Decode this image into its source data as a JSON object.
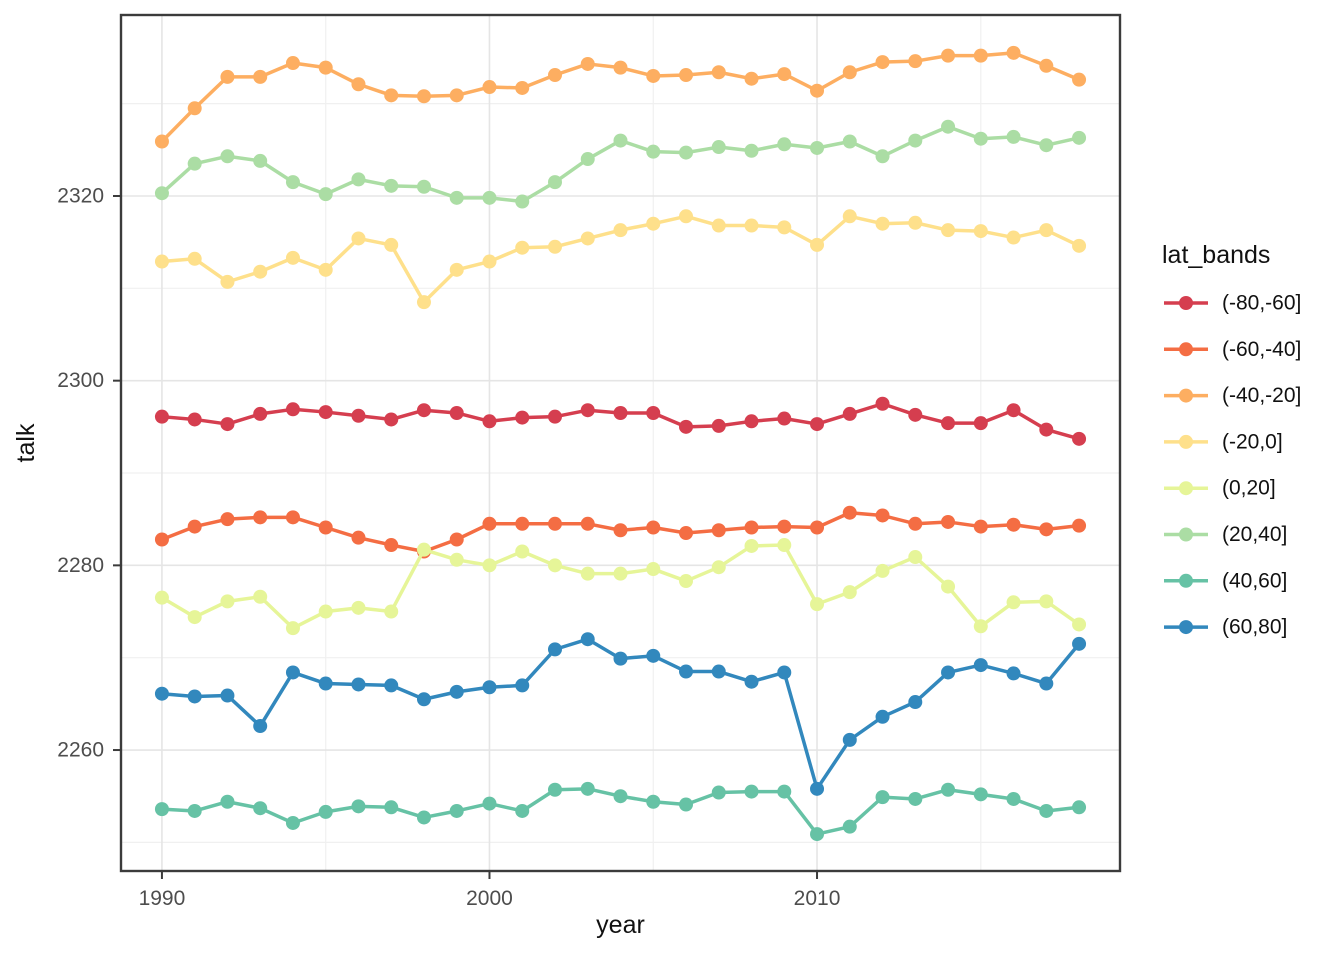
{
  "figure": {
    "background": "#ffffff"
  },
  "axes": {
    "x_label": "year",
    "y_label": "talk",
    "tick_color": "#4d4d4d",
    "title_color": "#111111",
    "panel_border_color": "#3b3b3b",
    "grid_major_color": "#e5e5e5",
    "grid_minor_color": "#f0f0f0"
  },
  "legend": {
    "title": "lat_bands",
    "position": "right"
  },
  "chart_data": {
    "type": "line",
    "title": "",
    "xlabel": "year",
    "ylabel": "talk",
    "x": [
      1990,
      1991,
      1992,
      1993,
      1994,
      1995,
      1996,
      1997,
      1998,
      1999,
      2000,
      2001,
      2002,
      2003,
      2004,
      2005,
      2006,
      2007,
      2008,
      2009,
      2010,
      2011,
      2012,
      2013,
      2014,
      2015,
      2016,
      2017,
      2018
    ],
    "series": [
      {
        "name": "(-80,-60]",
        "color": "#D53E4F",
        "values": [
          2296.1,
          2295.8,
          2295.3,
          2296.4,
          2296.9,
          2296.6,
          2296.2,
          2295.8,
          2296.8,
          2296.5,
          2295.6,
          2296.0,
          2296.1,
          2296.8,
          2296.5,
          2296.5,
          2295.0,
          2295.1,
          2295.6,
          2295.9,
          2295.3,
          2296.4,
          2297.5,
          2296.3,
          2295.4,
          2295.4,
          2296.8,
          2294.7,
          2293.7
        ]
      },
      {
        "name": "(-60,-40]",
        "color": "#F46D43",
        "values": [
          2282.8,
          2284.2,
          2285.0,
          2285.2,
          2285.2,
          2284.1,
          2283.0,
          2282.2,
          2281.5,
          2282.8,
          2284.5,
          2284.5,
          2284.5,
          2284.5,
          2283.8,
          2284.1,
          2283.5,
          2283.8,
          2284.1,
          2284.2,
          2284.1,
          2285.7,
          2285.4,
          2284.5,
          2284.7,
          2284.2,
          2284.4,
          2283.9,
          2284.3
        ]
      },
      {
        "name": "(-40,-20]",
        "color": "#FDAE61",
        "values": [
          2325.9,
          2329.5,
          2332.9,
          2332.9,
          2334.4,
          2333.9,
          2332.1,
          2330.9,
          2330.8,
          2330.9,
          2331.8,
          2331.7,
          2333.1,
          2334.3,
          2333.9,
          2333.0,
          2333.1,
          2333.4,
          2332.7,
          2333.2,
          2331.4,
          2333.4,
          2334.5,
          2334.6,
          2335.2,
          2335.2,
          2335.5,
          2334.1,
          2332.6
        ]
      },
      {
        "name": "(-20,0]",
        "color": "#FEE08B",
        "values": [
          2312.9,
          2313.2,
          2310.7,
          2311.8,
          2313.3,
          2312.0,
          2315.4,
          2314.7,
          2308.5,
          2312.0,
          2312.9,
          2314.4,
          2314.5,
          2315.4,
          2316.3,
          2317.0,
          2317.8,
          2316.8,
          2316.8,
          2316.6,
          2314.7,
          2317.8,
          2317.0,
          2317.1,
          2316.3,
          2316.2,
          2315.5,
          2316.3,
          2314.6
        ]
      },
      {
        "name": "(0,20]",
        "color": "#E6F598",
        "values": [
          2276.5,
          2274.4,
          2276.1,
          2276.6,
          2273.2,
          2275.0,
          2275.4,
          2275.0,
          2281.7,
          2280.6,
          2280.0,
          2281.5,
          2280.0,
          2279.1,
          2279.1,
          2279.6,
          2278.3,
          2279.8,
          2282.1,
          2282.2,
          2275.8,
          2277.1,
          2279.4,
          2280.9,
          2277.7,
          2273.4,
          2276.0,
          2276.1,
          2273.6
        ]
      },
      {
        "name": "(20,40]",
        "color": "#ABDDA4",
        "values": [
          2320.3,
          2323.5,
          2324.3,
          2323.8,
          2321.5,
          2320.2,
          2321.8,
          2321.1,
          2321.0,
          2319.8,
          2319.8,
          2319.4,
          2321.5,
          2324.0,
          2326.0,
          2324.8,
          2324.7,
          2325.3,
          2324.9,
          2325.6,
          2325.2,
          2325.9,
          2324.3,
          2326.0,
          2327.5,
          2326.2,
          2326.4,
          2325.5,
          2326.3
        ]
      },
      {
        "name": "(40,60]",
        "color": "#66C2A5",
        "values": [
          2253.6,
          2253.4,
          2254.4,
          2253.7,
          2252.1,
          2253.3,
          2253.9,
          2253.8,
          2252.7,
          2253.4,
          2254.2,
          2253.4,
          2255.7,
          2255.8,
          2255.0,
          2254.4,
          2254.1,
          2255.4,
          2255.5,
          2255.5,
          2250.9,
          2251.7,
          2254.9,
          2254.7,
          2255.7,
          2255.2,
          2254.7,
          2253.4,
          2253.8
        ]
      },
      {
        "name": "(60,80]",
        "color": "#3288BD",
        "values": [
          2266.1,
          2265.8,
          2265.9,
          2262.6,
          2268.4,
          2267.2,
          2267.1,
          2267.0,
          2265.5,
          2266.3,
          2266.8,
          2267.0,
          2270.9,
          2272.0,
          2269.9,
          2270.2,
          2268.5,
          2268.5,
          2267.4,
          2268.4,
          2255.8,
          2261.1,
          2263.6,
          2265.2,
          2268.4,
          2269.2,
          2268.3,
          2267.2,
          2271.5
        ]
      }
    ],
    "xlim": [
      1988.75,
      2019.25
    ],
    "ylim": [
      2246.9,
      2339.6
    ],
    "x_major_ticks": [
      1990,
      2000,
      2010
    ],
    "x_minor_ticks": [
      1995,
      2005,
      2015
    ],
    "y_major_ticks": [
      2260,
      2280,
      2300,
      2320
    ],
    "y_minor_ticks": [
      2250,
      2270,
      2290,
      2310,
      2330
    ],
    "grid": true,
    "legend_position": "right",
    "legend_title": "lat_bands"
  }
}
